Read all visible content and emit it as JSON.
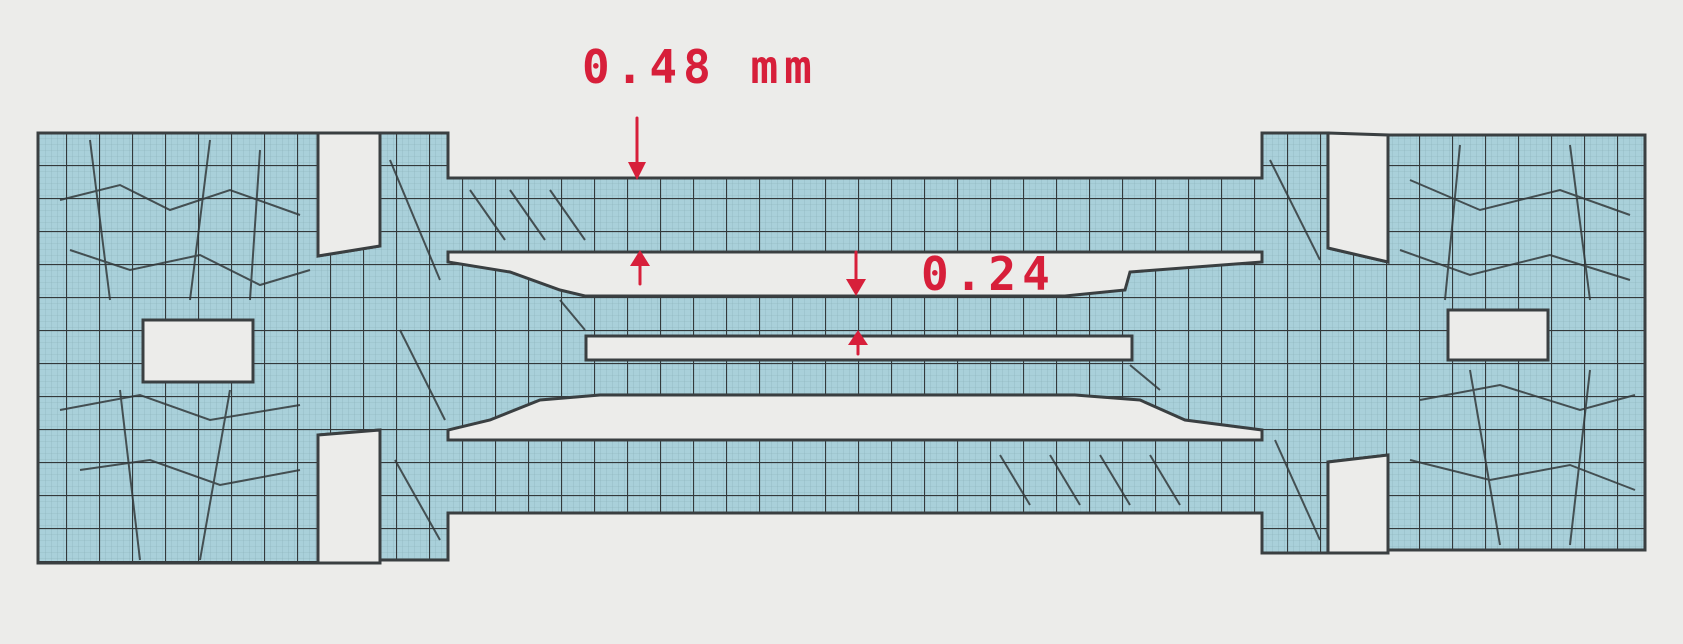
{
  "figure": {
    "description_kind": "finite-element mesh of a flexure specimen, printed on paper with handwritten red dimension annotations",
    "colors": {
      "paper": "#ececea",
      "mesh_fill": "#a9d0da",
      "mesh_line": "#3a3f41",
      "annotation": "#d71f3a"
    }
  },
  "annotations": {
    "outer_beam_thickness": "0.48 mm",
    "inner_beam_thickness": "0.24"
  }
}
